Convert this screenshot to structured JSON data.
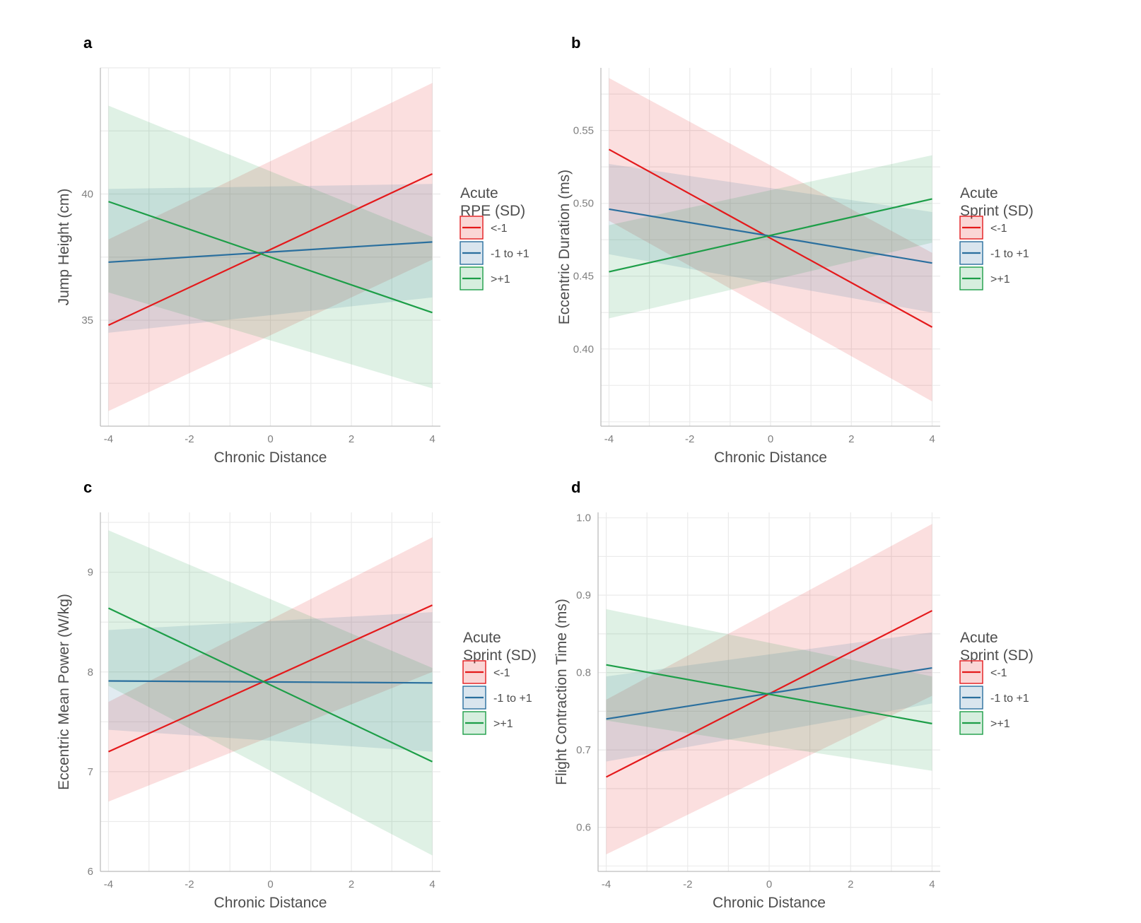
{
  "colors": {
    "red": "#e41a1c",
    "blue": "#2a6f9e",
    "green": "#1d9e48",
    "grid": "#ebebeb",
    "axis": "#bdbdbd"
  },
  "chart_data": [
    {
      "panel": "a",
      "type": "line",
      "xlabel": "Chronic Distance",
      "ylabel": "Jump Height (cm)",
      "xlim": [
        -4.2,
        4.2
      ],
      "ylim": [
        30.8,
        45
      ],
      "xticks": [
        -4,
        -2,
        0,
        2,
        4
      ],
      "yticks": [
        35,
        40
      ],
      "grid": true,
      "legend": {
        "title": [
          "Acute",
          "RPE (SD)"
        ],
        "placement": "right"
      },
      "series": [
        {
          "name": "<-1",
          "color": "red",
          "x": [
            -4,
            4
          ],
          "y": [
            34.8,
            40.8
          ],
          "lower": [
            31.4,
            37.4
          ],
          "upper": [
            38.2,
            44.4
          ]
        },
        {
          "name": "-1 to +1",
          "color": "blue",
          "x": [
            -4,
            4
          ],
          "y": [
            37.3,
            38.1
          ],
          "lower": [
            34.5,
            35.9
          ],
          "upper": [
            40.2,
            40.4
          ]
        },
        {
          "name": ">+1",
          "color": "green",
          "x": [
            -4,
            4
          ],
          "y": [
            39.7,
            35.3
          ],
          "lower": [
            36.1,
            32.3
          ],
          "upper": [
            43.5,
            38.3
          ]
        }
      ]
    },
    {
      "panel": "b",
      "type": "line",
      "xlabel": "Chronic Distance",
      "ylabel": "Eccentric Duration (ms)",
      "xlim": [
        -4.2,
        4.2
      ],
      "ylim": [
        0.347,
        0.593
      ],
      "xticks": [
        -4,
        -2,
        0,
        2,
        4
      ],
      "yticks": [
        0.4,
        0.45,
        0.5,
        0.55
      ],
      "ytick_labels": [
        "0.40",
        "0.45",
        "0.50",
        "0.55"
      ],
      "grid": true,
      "legend": {
        "title": [
          "Acute",
          "Sprint (SD)"
        ],
        "placement": "right"
      },
      "series": [
        {
          "name": "<-1",
          "color": "red",
          "x": [
            -4,
            4
          ],
          "y": [
            0.537,
            0.415
          ],
          "lower": [
            0.488,
            0.364
          ],
          "upper": [
            0.586,
            0.466
          ]
        },
        {
          "name": "-1 to +1",
          "color": "blue",
          "x": [
            -4,
            4
          ],
          "y": [
            0.496,
            0.459
          ],
          "lower": [
            0.465,
            0.425
          ],
          "upper": [
            0.527,
            0.494
          ]
        },
        {
          "name": ">+1",
          "color": "green",
          "x": [
            -4,
            4
          ],
          "y": [
            0.453,
            0.503
          ],
          "lower": [
            0.421,
            0.473
          ],
          "upper": [
            0.485,
            0.533
          ]
        }
      ]
    },
    {
      "panel": "c",
      "type": "line",
      "xlabel": "Chronic Distance",
      "ylabel": "Eccentric Mean Power (W/kg)",
      "xlim": [
        -4.2,
        4.2
      ],
      "ylim": [
        6.0,
        9.6
      ],
      "xticks": [
        -4,
        -2,
        0,
        2,
        4
      ],
      "yticks": [
        6,
        7,
        8,
        9
      ],
      "grid": true,
      "legend": {
        "title": [
          "Acute",
          "Sprint (SD)"
        ],
        "placement": "right"
      },
      "series": [
        {
          "name": "<-1",
          "color": "red",
          "x": [
            -4,
            4
          ],
          "y": [
            7.2,
            8.67
          ],
          "lower": [
            6.7,
            8.0
          ],
          "upper": [
            7.7,
            9.35
          ]
        },
        {
          "name": "-1 to +1",
          "color": "blue",
          "x": [
            -4,
            4
          ],
          "y": [
            7.91,
            7.89
          ],
          "lower": [
            7.42,
            7.2
          ],
          "upper": [
            8.42,
            8.6
          ]
        },
        {
          "name": ">+1",
          "color": "green",
          "x": [
            -4,
            4
          ],
          "y": [
            8.64,
            7.1
          ],
          "lower": [
            7.86,
            6.16
          ],
          "upper": [
            9.42,
            8.04
          ]
        }
      ]
    },
    {
      "panel": "d",
      "type": "line",
      "xlabel": "Chronic Distance",
      "ylabel": "Flight Contraction Time (ms)",
      "xlim": [
        -4.2,
        4.2
      ],
      "ylim": [
        0.543,
        1.007
      ],
      "xticks": [
        -4,
        -2,
        0,
        2,
        4
      ],
      "yticks": [
        0.6,
        0.7,
        0.8,
        0.9,
        1.0
      ],
      "ytick_labels": [
        "0.6",
        "0.7",
        "0.8",
        "0.9",
        "1.0"
      ],
      "grid": true,
      "legend": {
        "title": [
          "Acute",
          "Sprint (SD)"
        ],
        "placement": "right"
      },
      "series": [
        {
          "name": "<-1",
          "color": "red",
          "x": [
            -4,
            4
          ],
          "y": [
            0.665,
            0.88
          ],
          "lower": [
            0.565,
            0.77
          ],
          "upper": [
            0.765,
            0.992
          ]
        },
        {
          "name": "-1 to +1",
          "color": "blue",
          "x": [
            -4,
            4
          ],
          "y": [
            0.74,
            0.806
          ],
          "lower": [
            0.685,
            0.76
          ],
          "upper": [
            0.795,
            0.852
          ]
        },
        {
          "name": ">+1",
          "color": "green",
          "x": [
            -4,
            4
          ],
          "y": [
            0.81,
            0.734
          ],
          "lower": [
            0.738,
            0.673
          ],
          "upper": [
            0.882,
            0.795
          ]
        }
      ]
    }
  ]
}
